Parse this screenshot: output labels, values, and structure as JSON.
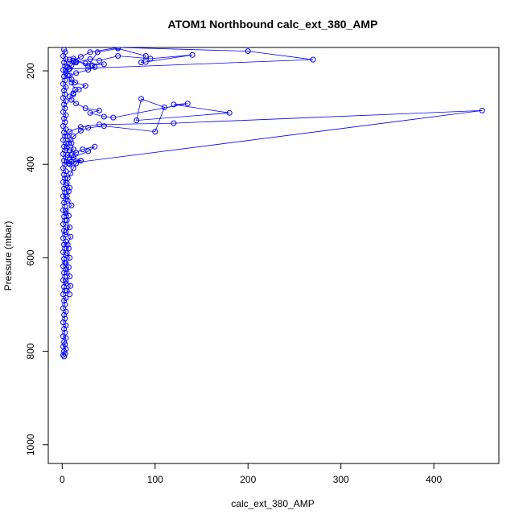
{
  "chart_data": {
    "type": "line",
    "title": "ATOM1 Northbound calc_ext_380_AMP",
    "xlabel": "calc_ext_380_AMP",
    "ylabel": "Pressure (mbar)",
    "x_ticks": [
      0,
      100,
      200,
      300,
      400
    ],
    "y_ticks": [
      200,
      400,
      600,
      800,
      1000
    ],
    "xlim": [
      -15,
      470
    ],
    "ylim": [
      1040,
      150
    ],
    "y_reversed": true,
    "grid": false,
    "legend": "none",
    "marker": "open-circle",
    "color": "#0000ff",
    "series": [
      {
        "points": [
          [
            2,
            811
          ],
          [
            1,
            808
          ],
          [
            3,
            805
          ],
          [
            2,
            800
          ],
          [
            4,
            795
          ],
          [
            1,
            790
          ],
          [
            3,
            785
          ],
          [
            2,
            780
          ],
          [
            4,
            772
          ],
          [
            1,
            768
          ],
          [
            3,
            760
          ],
          [
            2,
            752
          ],
          [
            4,
            745
          ],
          [
            1,
            738
          ],
          [
            3,
            730
          ],
          [
            2,
            722
          ],
          [
            4,
            715
          ],
          [
            1,
            708
          ],
          [
            3,
            700
          ],
          [
            2,
            692
          ],
          [
            4,
            686
          ],
          [
            1,
            678
          ],
          [
            3,
            670
          ],
          [
            2,
            662
          ],
          [
            4,
            655
          ],
          [
            1,
            648
          ],
          [
            3,
            640
          ],
          [
            2,
            632
          ],
          [
            4,
            625
          ],
          [
            1,
            618
          ],
          [
            3,
            610
          ],
          [
            2,
            602
          ],
          [
            4,
            595
          ],
          [
            1,
            588
          ],
          [
            3,
            580
          ],
          [
            2,
            572
          ],
          [
            4,
            565
          ],
          [
            1,
            558
          ],
          [
            3,
            550
          ],
          [
            2,
            542
          ],
          [
            4,
            535
          ],
          [
            1,
            528
          ],
          [
            3,
            520
          ],
          [
            2,
            512
          ],
          [
            4,
            505
          ],
          [
            1,
            498
          ],
          [
            3,
            490
          ],
          [
            2,
            482
          ],
          [
            4,
            475
          ],
          [
            1,
            468
          ],
          [
            3,
            460
          ],
          [
            2,
            452
          ],
          [
            4,
            445
          ],
          [
            1,
            438
          ],
          [
            3,
            430
          ],
          [
            2,
            422
          ],
          [
            4,
            415
          ],
          [
            1,
            408
          ],
          [
            3,
            400
          ],
          [
            2,
            392
          ],
          [
            4,
            385
          ],
          [
            1,
            378
          ],
          [
            3,
            370
          ],
          [
            2,
            362
          ],
          [
            4,
            355
          ],
          [
            1,
            348
          ],
          [
            3,
            340
          ],
          [
            2,
            332
          ],
          [
            4,
            325
          ],
          [
            1,
            318
          ],
          [
            3,
            310
          ],
          [
            2,
            302
          ],
          [
            4,
            295
          ],
          [
            1,
            288
          ],
          [
            3,
            280
          ],
          [
            2,
            272
          ],
          [
            4,
            265
          ],
          [
            1,
            258
          ],
          [
            3,
            250
          ],
          [
            2,
            242
          ],
          [
            4,
            235
          ],
          [
            1,
            228
          ],
          [
            3,
            220
          ],
          [
            2,
            212
          ],
          [
            4,
            205
          ],
          [
            1,
            198
          ],
          [
            3,
            190
          ],
          [
            2,
            182
          ],
          [
            4,
            175
          ],
          [
            1,
            168
          ],
          [
            3,
            160
          ],
          [
            2,
            155
          ]
        ]
      },
      {
        "points": [
          [
            8,
            678
          ],
          [
            5,
            670
          ],
          [
            9,
            660
          ],
          [
            4,
            650
          ],
          [
            8,
            640
          ],
          [
            5,
            632
          ],
          [
            7,
            620
          ],
          [
            4,
            612
          ],
          [
            8,
            600
          ],
          [
            5,
            590
          ],
          [
            7,
            580
          ],
          [
            6,
            572
          ],
          [
            9,
            555
          ],
          [
            4,
            545
          ],
          [
            8,
            535
          ],
          [
            5,
            520
          ],
          [
            7,
            510
          ],
          [
            4,
            500
          ],
          [
            10,
            488
          ],
          [
            6,
            478
          ],
          [
            5,
            468
          ],
          [
            7,
            458
          ],
          [
            8,
            450
          ],
          [
            5,
            440
          ],
          [
            6,
            430
          ],
          [
            9,
            420
          ],
          [
            12,
            408
          ],
          [
            15,
            398
          ],
          [
            20,
            392
          ],
          [
            8,
            390
          ],
          [
            12,
            385
          ],
          [
            28,
            372
          ],
          [
            35,
            362
          ],
          [
            22,
            368
          ],
          [
            10,
            380
          ],
          [
            15,
            375
          ],
          [
            8,
            370
          ],
          [
            5,
            365
          ],
          [
            7,
            355
          ],
          [
            9,
            348
          ],
          [
            12,
            340
          ],
          [
            20,
            328
          ],
          [
            28,
            322
          ],
          [
            45,
            318
          ],
          [
            100,
            330
          ],
          [
            110,
            278
          ],
          [
            85,
            260
          ],
          [
            80,
            306
          ],
          [
            180,
            290
          ],
          [
            120,
            272
          ],
          [
            135,
            270
          ],
          [
            55,
            300
          ],
          [
            45,
            298
          ],
          [
            30,
            290
          ],
          [
            40,
            285
          ],
          [
            25,
            280
          ],
          [
            15,
            270
          ],
          [
            10,
            262
          ],
          [
            8,
            255
          ],
          [
            12,
            248
          ],
          [
            18,
            240
          ],
          [
            25,
            232
          ],
          [
            14,
            225
          ],
          [
            10,
            218
          ],
          [
            8,
            210
          ],
          [
            15,
            205
          ],
          [
            28,
            198
          ],
          [
            35,
            192
          ],
          [
            32,
            188
          ],
          [
            45,
            186
          ],
          [
            25,
            184
          ],
          [
            15,
            180
          ],
          [
            8,
            176
          ],
          [
            12,
            174
          ],
          [
            28,
            190
          ],
          [
            38,
            160
          ],
          [
            60,
            152
          ],
          [
            90,
            168
          ],
          [
            85,
            182
          ],
          [
            90,
            181
          ],
          [
            140,
            166
          ],
          [
            95,
            174
          ],
          [
            60,
            168
          ],
          [
            40,
            178
          ],
          [
            30,
            175
          ],
          [
            15,
            182
          ],
          [
            10,
            188
          ],
          [
            6,
            192
          ],
          [
            8,
            196
          ],
          [
            4,
            200
          ],
          [
            6,
            210
          ],
          [
            10,
            225
          ],
          [
            14,
            240
          ],
          [
            12,
            250
          ]
        ]
      },
      {
        "points": [
          [
            7,
            398
          ],
          [
            452,
            285
          ],
          [
            120,
            312
          ],
          [
            40,
            315
          ],
          [
            20,
            320
          ],
          [
            8,
            330
          ],
          [
            6,
            340
          ],
          [
            10,
            355
          ],
          [
            12,
            368
          ],
          [
            6,
            380
          ],
          [
            20,
            392
          ],
          [
            10,
            395
          ],
          [
            8,
            400
          ],
          [
            5,
            395
          ]
        ]
      },
      {
        "points": [
          [
            7,
            196
          ],
          [
            270,
            176
          ],
          [
            200,
            158
          ],
          [
            60,
            150
          ],
          [
            30,
            160
          ],
          [
            20,
            170
          ],
          [
            12,
            178
          ],
          [
            8,
            185
          ]
        ]
      }
    ]
  }
}
